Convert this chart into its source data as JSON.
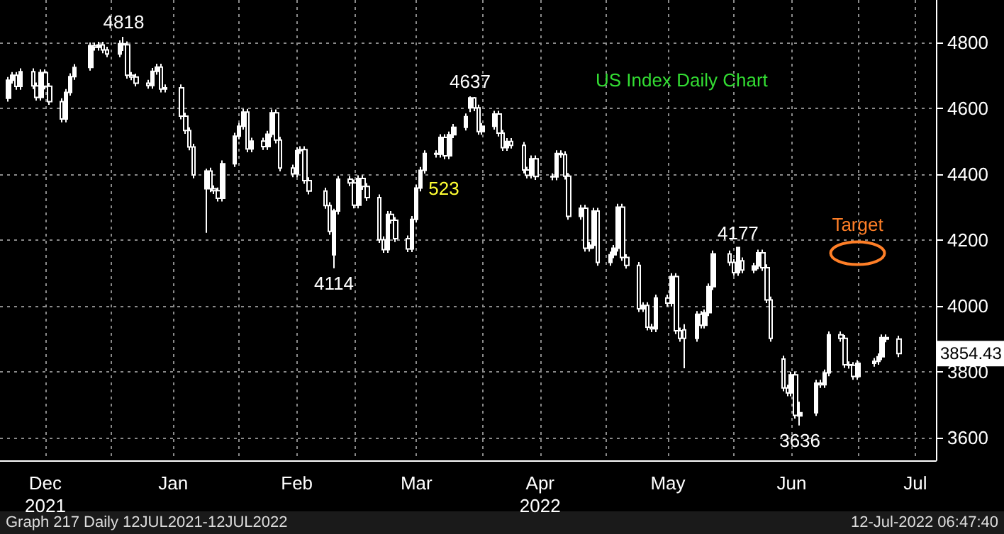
{
  "chart_data": {
    "type": "candlestick",
    "title": "US Index Daily Chart",
    "color": "#ffffff",
    "x": [
      "2021-12-07",
      "2021-12-08",
      "2021-12-09",
      "2021-12-10",
      "2021-12-13",
      "2021-12-14",
      "2021-12-15",
      "2021-12-16",
      "2021-12-17",
      "2021-12-20",
      "2021-12-21",
      "2021-12-22",
      "2021-12-23",
      "2021-12-27",
      "2021-12-28",
      "2021-12-29",
      "2021-12-30",
      "2021-12-31",
      "2022-01-03",
      "2022-01-04",
      "2022-01-05",
      "2022-01-06",
      "2022-01-07",
      "2022-01-10",
      "2022-01-11",
      "2022-01-12",
      "2022-01-13",
      "2022-01-14",
      "2022-01-18",
      "2022-01-19",
      "2022-01-20",
      "2022-01-21",
      "2022-01-24",
      "2022-01-25",
      "2022-01-26",
      "2022-01-27",
      "2022-01-28",
      "2022-01-31",
      "2022-02-01",
      "2022-02-02",
      "2022-02-03",
      "2022-02-04",
      "2022-02-07",
      "2022-02-08",
      "2022-02-09",
      "2022-02-10",
      "2022-02-11",
      "2022-02-14",
      "2022-02-15",
      "2022-02-16",
      "2022-02-17",
      "2022-02-18",
      "2022-02-22",
      "2022-02-23",
      "2022-02-24",
      "2022-02-25",
      "2022-02-28",
      "2022-03-01",
      "2022-03-02",
      "2022-03-03",
      "2022-03-04",
      "2022-03-07",
      "2022-03-08",
      "2022-03-09",
      "2022-03-10",
      "2022-03-11",
      "2022-03-14",
      "2022-03-15",
      "2022-03-16",
      "2022-03-17",
      "2022-03-18",
      "2022-03-21",
      "2022-03-22",
      "2022-03-23",
      "2022-03-24",
      "2022-03-25",
      "2022-03-28",
      "2022-03-29",
      "2022-03-30",
      "2022-03-31",
      "2022-04-01",
      "2022-04-04",
      "2022-04-05",
      "2022-04-06",
      "2022-04-07",
      "2022-04-08",
      "2022-04-11",
      "2022-04-12",
      "2022-04-13",
      "2022-04-14",
      "2022-04-18",
      "2022-04-19",
      "2022-04-20",
      "2022-04-21",
      "2022-04-22",
      "2022-04-25",
      "2022-04-26",
      "2022-04-27",
      "2022-04-28",
      "2022-04-29",
      "2022-05-02",
      "2022-05-03",
      "2022-05-04",
      "2022-05-05",
      "2022-05-06",
      "2022-05-09",
      "2022-05-10",
      "2022-05-11",
      "2022-05-12",
      "2022-05-13",
      "2022-05-16",
      "2022-05-17",
      "2022-05-18",
      "2022-05-19",
      "2022-05-20",
      "2022-05-23",
      "2022-05-24",
      "2022-05-25",
      "2022-05-26",
      "2022-05-27",
      "2022-05-31",
      "2022-06-01",
      "2022-06-02",
      "2022-06-03",
      "2022-06-06",
      "2022-06-07",
      "2022-06-08",
      "2022-06-09",
      "2022-06-10",
      "2022-06-13",
      "2022-06-14",
      "2022-06-15",
      "2022-06-16",
      "2022-06-17",
      "2022-06-21",
      "2022-06-22",
      "2022-06-23",
      "2022-06-24",
      "2022-06-27",
      "2022-06-28",
      "2022-06-29",
      "2022-06-30",
      "2022-07-01",
      "2022-07-05",
      "2022-07-06",
      "2022-07-07",
      "2022-07-08",
      "2022-07-11"
    ],
    "ohlc": [
      [
        4631,
        4696,
        4621,
        4686
      ],
      [
        4686,
        4711,
        4676,
        4701
      ],
      [
        4701,
        4711,
        4657,
        4667
      ],
      [
        4667,
        4722,
        4657,
        4712
      ],
      [
        4712,
        4722,
        4659,
        4669
      ],
      [
        4669,
        4679,
        4624,
        4634
      ],
      [
        4634,
        4719,
        4624,
        4709
      ],
      [
        4709,
        4719,
        4658,
        4668
      ],
      [
        4668,
        4678,
        4611,
        4621
      ],
      [
        4621,
        4631,
        4558,
        4568
      ],
      [
        4568,
        4659,
        4558,
        4649
      ],
      [
        4649,
        4707,
        4639,
        4697
      ],
      [
        4697,
        4735,
        4687,
        4725
      ],
      [
        4725,
        4801,
        4715,
        4791
      ],
      [
        4791,
        4801,
        4776,
        4786
      ],
      [
        4786,
        4803,
        4776,
        4793
      ],
      [
        4793,
        4803,
        4768,
        4778
      ],
      [
        4778,
        4788,
        4756,
        4766
      ],
      [
        4766,
        4807,
        4756,
        4797
      ],
      [
        4797,
        4818,
        4775,
        4794
      ],
      [
        4794,
        4804,
        4691,
        4701
      ],
      [
        4701,
        4711,
        4686,
        4696
      ],
      [
        4696,
        4706,
        4667,
        4677
      ],
      [
        4677,
        4687,
        4660,
        4670
      ],
      [
        4670,
        4723,
        4660,
        4713
      ],
      [
        4713,
        4736,
        4703,
        4726
      ],
      [
        4726,
        4736,
        4649,
        4659
      ],
      [
        4659,
        4673,
        4649,
        4663
      ],
      [
        4663,
        4673,
        4567,
        4577
      ],
      [
        4577,
        4587,
        4523,
        4533
      ],
      [
        4533,
        4543,
        4473,
        4483
      ],
      [
        4483,
        4493,
        4388,
        4398
      ],
      [
        4356,
        4417,
        4222,
        4410
      ],
      [
        4410,
        4420,
        4346,
        4356
      ],
      [
        4356,
        4366,
        4340,
        4350
      ],
      [
        4350,
        4360,
        4317,
        4327
      ],
      [
        4327,
        4442,
        4317,
        4432
      ],
      [
        4432,
        4526,
        4422,
        4516
      ],
      [
        4516,
        4556,
        4506,
        4546
      ],
      [
        4546,
        4599,
        4536,
        4589
      ],
      [
        4589,
        4599,
        4467,
        4477
      ],
      [
        4477,
        4511,
        4467,
        4501
      ],
      [
        4501,
        4511,
        4474,
        4484
      ],
      [
        4484,
        4532,
        4474,
        4522
      ],
      [
        4522,
        4597,
        4512,
        4587
      ],
      [
        4587,
        4597,
        4494,
        4504
      ],
      [
        4504,
        4514,
        4409,
        4419
      ],
      [
        4419,
        4429,
        4391,
        4401
      ],
      [
        4401,
        4482,
        4391,
        4472
      ],
      [
        4472,
        4485,
        4462,
        4475
      ],
      [
        4475,
        4485,
        4371,
        4381
      ],
      [
        4381,
        4391,
        4339,
        4349
      ],
      [
        4349,
        4359,
        4295,
        4305
      ],
      [
        4305,
        4315,
        4216,
        4226
      ],
      [
        4155,
        4295,
        4114,
        4288
      ],
      [
        4288,
        4395,
        4278,
        4385
      ],
      [
        4385,
        4395,
        4364,
        4374
      ],
      [
        4374,
        4384,
        4296,
        4306
      ],
      [
        4306,
        4397,
        4296,
        4387
      ],
      [
        4387,
        4397,
        4353,
        4363
      ],
      [
        4363,
        4373,
        4319,
        4329
      ],
      [
        4329,
        4339,
        4191,
        4201
      ],
      [
        4201,
        4211,
        4161,
        4171
      ],
      [
        4171,
        4288,
        4161,
        4278
      ],
      [
        4278,
        4288,
        4250,
        4260
      ],
      [
        4260,
        4270,
        4194,
        4204
      ],
      [
        4204,
        4214,
        4163,
        4173
      ],
      [
        4173,
        4273,
        4163,
        4263
      ],
      [
        4263,
        4368,
        4253,
        4358
      ],
      [
        4358,
        4422,
        4348,
        4412
      ],
      [
        4412,
        4473,
        4402,
        4463
      ],
      [
        4463,
        4473,
        4451,
        4461
      ],
      [
        4461,
        4522,
        4451,
        4512
      ],
      [
        4512,
        4522,
        4446,
        4456
      ],
      [
        4456,
        4530,
        4446,
        4520
      ],
      [
        4520,
        4553,
        4510,
        4543
      ],
      [
        4543,
        4585,
        4533,
        4575
      ],
      [
        4602,
        4637,
        4589,
        4632
      ],
      [
        4632,
        4635,
        4592,
        4602
      ],
      [
        4602,
        4612,
        4520,
        4530
      ],
      [
        4530,
        4556,
        4520,
        4546
      ],
      [
        4546,
        4593,
        4536,
        4583
      ],
      [
        4583,
        4593,
        4515,
        4525
      ],
      [
        4525,
        4535,
        4471,
        4481
      ],
      [
        4481,
        4510,
        4471,
        4500
      ],
      [
        4500,
        4510,
        4478,
        4488
      ],
      [
        4488,
        4498,
        4403,
        4413
      ],
      [
        4413,
        4423,
        4387,
        4397
      ],
      [
        4397,
        4457,
        4387,
        4447
      ],
      [
        4447,
        4457,
        4383,
        4393
      ],
      [
        4393,
        4403,
        4382,
        4392
      ],
      [
        4392,
        4473,
        4382,
        4463
      ],
      [
        4463,
        4473,
        4450,
        4460
      ],
      [
        4460,
        4470,
        4384,
        4394
      ],
      [
        4394,
        4404,
        4262,
        4272
      ],
      [
        4272,
        4307,
        4262,
        4297
      ],
      [
        4297,
        4307,
        4165,
        4175
      ],
      [
        4175,
        4194,
        4165,
        4184
      ],
      [
        4184,
        4298,
        4174,
        4288
      ],
      [
        4288,
        4298,
        4122,
        4132
      ],
      [
        4132,
        4165,
        4122,
        4155
      ],
      [
        4155,
        4185,
        4145,
        4175
      ],
      [
        4175,
        4310,
        4165,
        4300
      ],
      [
        4300,
        4310,
        4137,
        4147
      ],
      [
        4147,
        4157,
        4113,
        4123
      ],
      [
        4123,
        4133,
        3981,
        3991
      ],
      [
        3991,
        4011,
        3981,
        4001
      ],
      [
        4001,
        4011,
        3925,
        3935
      ],
      [
        3935,
        3945,
        3920,
        3930
      ],
      [
        3930,
        4034,
        3920,
        4024
      ],
      [
        4024,
        4034,
        3998,
        4008
      ],
      [
        4008,
        4099,
        3998,
        4089
      ],
      [
        4089,
        4099,
        3914,
        3924
      ],
      [
        3924,
        3934,
        3891,
        3901
      ],
      [
        3927,
        3944,
        3810,
        3901
      ],
      [
        3901,
        3984,
        3891,
        3974
      ],
      [
        3974,
        3984,
        3931,
        3941
      ],
      [
        3941,
        3989,
        3931,
        3979
      ],
      [
        3979,
        4068,
        3969,
        4058
      ],
      [
        4058,
        4168,
        4048,
        4158
      ],
      [
        4158,
        4168,
        4122,
        4132
      ],
      [
        4132,
        4142,
        4091,
        4101
      ],
      [
        4101,
        4177,
        4091,
        4177
      ],
      [
        4137,
        4147,
        4099,
        4109
      ],
      [
        4109,
        4131,
        4099,
        4121
      ],
      [
        4121,
        4171,
        4111,
        4161
      ],
      [
        4161,
        4171,
        4106,
        4116
      ],
      [
        4116,
        4126,
        4008,
        4018
      ],
      [
        4018,
        4028,
        3891,
        3901
      ],
      [
        3838,
        3848,
        3740,
        3750
      ],
      [
        3750,
        3760,
        3725,
        3735
      ],
      [
        3735,
        3800,
        3725,
        3790
      ],
      [
        3790,
        3800,
        3657,
        3667
      ],
      [
        3665,
        3708,
        3636,
        3675
      ],
      [
        3675,
        3775,
        3665,
        3765
      ],
      [
        3765,
        3775,
        3750,
        3760
      ],
      [
        3760,
        3806,
        3750,
        3796
      ],
      [
        3796,
        3922,
        3786,
        3912
      ],
      [
        3912,
        3922,
        3891,
        3901
      ],
      [
        3901,
        3911,
        3811,
        3821
      ],
      [
        3821,
        3831,
        3809,
        3819
      ],
      [
        3819,
        3829,
        3775,
        3785
      ],
      [
        3785,
        3835,
        3775,
        3825
      ],
      [
        3825,
        3841,
        3815,
        3831
      ],
      [
        3831,
        3855,
        3821,
        3845
      ],
      [
        3845,
        3913,
        3835,
        3903
      ],
      [
        3903,
        3913,
        3889,
        3899
      ],
      [
        3899,
        3909,
        3844,
        3854.43
      ]
    ],
    "xlim": [
      "2021-12-05",
      "2022-07-20"
    ],
    "xticks": [
      {
        "value": "2021-12-16",
        "label": "Dec\n2021"
      },
      {
        "value": "2022-01-01",
        "label": null
      },
      {
        "value": "2022-01-16",
        "label": "Jan"
      },
      {
        "value": "2022-02-01",
        "label": null
      },
      {
        "value": "2022-02-15",
        "label": "Feb"
      },
      {
        "value": "2022-03-01",
        "label": null
      },
      {
        "value": "2022-03-16",
        "label": "Mar"
      },
      {
        "value": "2022-04-01",
        "label": null
      },
      {
        "value": "2022-04-15",
        "label": "Apr\n2022"
      },
      {
        "value": "2022-05-01",
        "label": null
      },
      {
        "value": "2022-05-16",
        "label": "May"
      },
      {
        "value": "2022-06-01",
        "label": null
      },
      {
        "value": "2022-06-15",
        "label": "Jun"
      },
      {
        "value": "2022-07-01",
        "label": null
      },
      {
        "value": "2022-07-15",
        "label": "Jul"
      }
    ],
    "ylim": [
      3530,
      4930
    ],
    "yticks": [
      3600,
      3800,
      4000,
      4200,
      4400,
      4600,
      4800
    ],
    "grid": true,
    "annotations": [
      {
        "text": "4818",
        "x": "2022-01-04",
        "y": 4818
      },
      {
        "text": "4637",
        "x": "2022-03-29",
        "y": 4637
      },
      {
        "text": "4114",
        "x": "2022-02-24",
        "y": 4114
      },
      {
        "text": "4177",
        "x": "2022-06-02",
        "y": 4177
      },
      {
        "text": "3636",
        "x": "2022-06-17",
        "y": 3636
      },
      {
        "text": "3854.43",
        "x": "2022-07-11",
        "y": 3854.43
      },
      "523",
      {
        "text": "Target",
        "x": "2022-07-01",
        "y": 4160
      },
      "Graph 217 Daily 12JUL2021-12JUL2022",
      "12-Jul-2022 06:47:40"
    ]
  }
}
